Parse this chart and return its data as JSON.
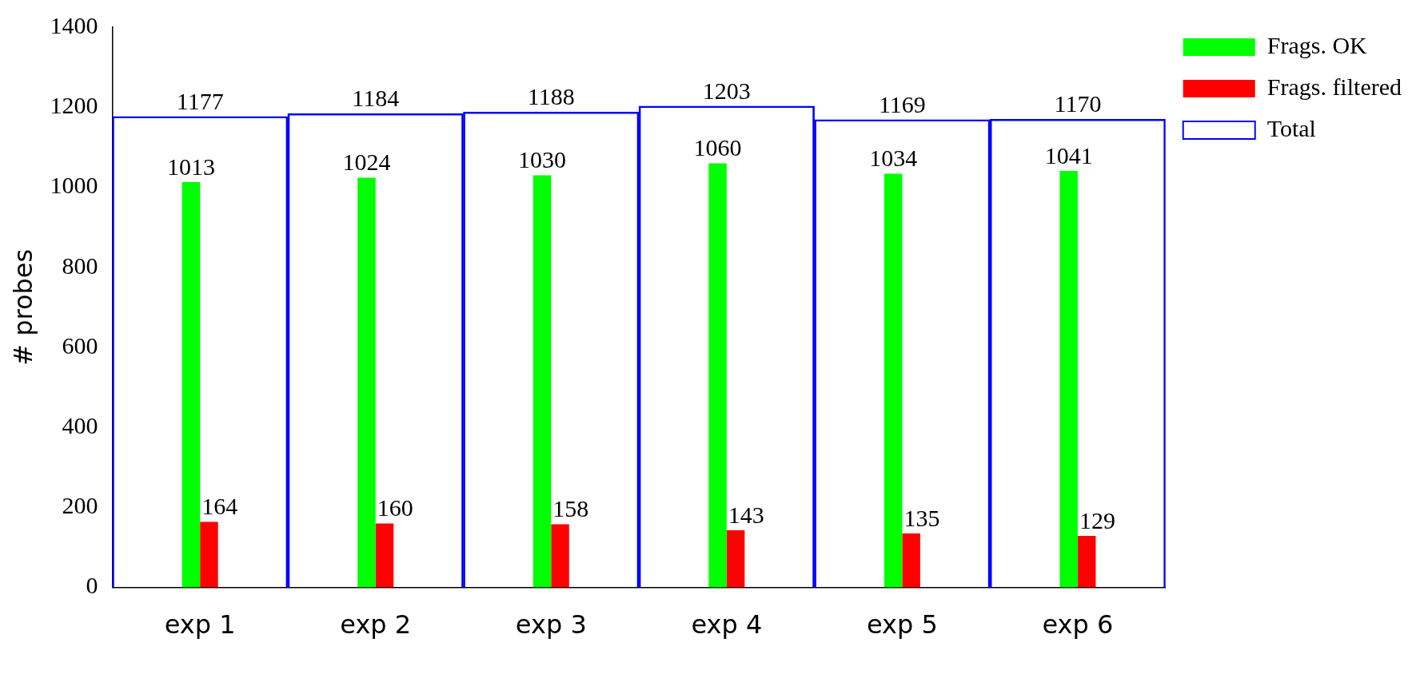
{
  "chart_data": {
    "type": "bar",
    "ylabel": "# probes",
    "categories": [
      "exp 1",
      "exp 2",
      "exp 3",
      "exp 4",
      "exp 5",
      "exp 6"
    ],
    "series": [
      {
        "name": "Total",
        "color": "#0000ff",
        "values": [
          1177,
          1184,
          1188,
          1203,
          1169,
          1170
        ]
      },
      {
        "name": "Frags. OK",
        "color": "#00ff00",
        "values": [
          1013,
          1024,
          1030,
          1060,
          1034,
          1041
        ]
      },
      {
        "name": "Frags. filtered",
        "color": "#ff0000",
        "values": [
          164,
          160,
          158,
          143,
          135,
          129
        ]
      }
    ],
    "ylim": [
      0,
      1400
    ],
    "yticks": [
      0,
      200,
      400,
      600,
      800,
      1000,
      1200,
      1400
    ],
    "grid": false,
    "legend": "top right",
    "data_labels": true
  }
}
